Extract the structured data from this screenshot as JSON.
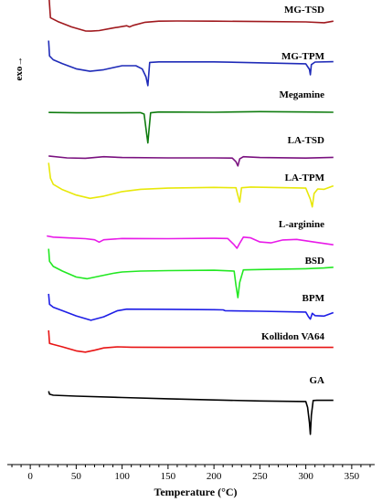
{
  "chart_data": {
    "type": "line",
    "xlabel": "Temperature (°C)",
    "ylabel": "exo→",
    "xlim": [
      -25,
      375
    ],
    "xticks": [
      0,
      50,
      100,
      150,
      200,
      250,
      300,
      350
    ],
    "series": [
      {
        "name": "MG-TSD",
        "color": "#a0191e",
        "x": [
          20,
          22,
          30,
          45,
          60,
          66,
          75,
          90,
          105,
          108,
          112,
          125,
          140,
          160,
          200,
          250,
          300,
          320,
          330
        ],
        "y": [
          20,
          6.0,
          4.0,
          1.2,
          -0.9,
          -1.0,
          -0.7,
          0.6,
          1.8,
          1.2,
          2.0,
          3.6,
          4.2,
          4.3,
          4.2,
          4.0,
          3.8,
          3.4,
          4.2
        ]
      },
      {
        "name": "MG-TPM",
        "color": "#1f2bb8",
        "x": [
          20,
          21,
          25,
          35,
          50,
          65,
          80,
          100,
          115,
          122,
          126,
          128,
          130,
          140,
          200,
          300,
          304,
          305,
          306,
          310,
          330
        ],
        "y": [
          15,
          7.0,
          5.0,
          3.0,
          0.3,
          -1.0,
          -0.2,
          1.9,
          1.9,
          0.2,
          -4.0,
          -8.5,
          3.6,
          3.9,
          3.9,
          2.9,
          0.0,
          -2.8,
          2.5,
          3.8,
          4.0
        ]
      },
      {
        "name": "Megamine",
        "color": "#0f7c0f",
        "x": [
          20,
          50,
          100,
          120,
          124,
          127,
          128,
          129,
          131,
          140,
          200,
          250,
          300,
          330
        ],
        "y": [
          0.4,
          0.2,
          0.2,
          0.3,
          -0.5,
          -12.0,
          -15.5,
          -10.0,
          0.2,
          0.6,
          0.5,
          0.8,
          0.6,
          0.5
        ]
      },
      {
        "name": "LA-TSD",
        "color": "#7a117f",
        "x": [
          20,
          40,
          60,
          80,
          100,
          150,
          200,
          220,
          224,
          226,
          228,
          232,
          250,
          300,
          330
        ],
        "y": [
          1.0,
          0.0,
          -0.2,
          0.6,
          0.2,
          0.0,
          0.0,
          -0.1,
          -2.0,
          -4.2,
          -0.5,
          0.6,
          0.2,
          -0.1,
          0.3
        ]
      },
      {
        "name": "LA-TPM",
        "color": "#e8e80a",
        "x": [
          20,
          22,
          25,
          35,
          50,
          65,
          80,
          100,
          120,
          150,
          200,
          224,
          226,
          228,
          230,
          240,
          300,
          305,
          307,
          309,
          313,
          320,
          330
        ],
        "y": [
          16.0,
          8.0,
          4.8,
          2.0,
          -0.8,
          -2.5,
          -1.4,
          1.0,
          2.2,
          2.8,
          3.2,
          3.0,
          -1.0,
          -4.5,
          3.0,
          3.4,
          2.8,
          -3.0,
          -7.0,
          0.0,
          2.4,
          2.2,
          4.0
        ]
      },
      {
        "name": "L-arginine",
        "color": "#e81be8",
        "x": [
          18,
          25,
          40,
          60,
          70,
          75,
          80,
          100,
          150,
          200,
          215,
          222,
          225,
          228,
          232,
          240,
          250,
          262,
          275,
          290,
          310,
          330
        ],
        "y": [
          2.6,
          2.0,
          1.6,
          1.2,
          0.6,
          -0.6,
          0.6,
          1.3,
          1.2,
          1.4,
          1.3,
          -2.0,
          -3.8,
          -1.2,
          2.0,
          1.6,
          -0.5,
          -1.0,
          0.5,
          0.8,
          -0.6,
          -2.0
        ]
      },
      {
        "name": "BSD",
        "color": "#22e822",
        "x": [
          20,
          21,
          25,
          35,
          50,
          62,
          75,
          90,
          100,
          120,
          150,
          200,
          222,
          224,
          226,
          228,
          232,
          250,
          300,
          320,
          330
        ],
        "y": [
          14.0,
          7.5,
          4.8,
          2.4,
          -0.7,
          -1.6,
          -0.3,
          1.2,
          1.9,
          2.4,
          2.6,
          2.8,
          2.4,
          -5.0,
          -11.5,
          -3.5,
          3.0,
          3.2,
          3.6,
          4.0,
          4.4
        ]
      },
      {
        "name": "BPM",
        "color": "#1e1ee6",
        "x": [
          20,
          21,
          25,
          35,
          50,
          66,
          80,
          95,
          105,
          150,
          200,
          210,
          212,
          250,
          300,
          303,
          305,
          307,
          310,
          320,
          330
        ],
        "y": [
          11.0,
          5.5,
          4.0,
          2.2,
          -0.5,
          -2.8,
          -1.0,
          2.2,
          3.0,
          2.9,
          2.7,
          2.6,
          2.2,
          1.9,
          1.5,
          -1.0,
          -2.2,
          0.8,
          -0.4,
          -0.6,
          1.2
        ]
      },
      {
        "name": "Kollidon VA64",
        "color": "#e81414",
        "x": [
          20,
          21,
          25,
          35,
          50,
          60,
          70,
          80,
          95,
          110,
          150,
          200,
          250,
          300,
          330
        ],
        "y": [
          11.0,
          4.2,
          3.6,
          2.4,
          0.3,
          -0.4,
          0.6,
          1.8,
          2.4,
          2.2,
          2.1,
          2.1,
          2.1,
          2.1,
          2.1
        ]
      },
      {
        "name": "GA",
        "color": "#000000",
        "x": [
          20,
          21,
          25,
          50,
          100,
          150,
          200,
          250,
          300,
          302,
          304,
          305,
          306,
          308,
          312,
          330
        ],
        "y": [
          4.5,
          2.9,
          2.4,
          1.9,
          1.2,
          0.5,
          -0.1,
          -0.6,
          -0.9,
          -4.0,
          -12.0,
          -18.0,
          -8.0,
          -0.4,
          -0.3,
          -0.3
        ]
      }
    ],
    "grid": false,
    "legend": "inline labels above each curve"
  }
}
